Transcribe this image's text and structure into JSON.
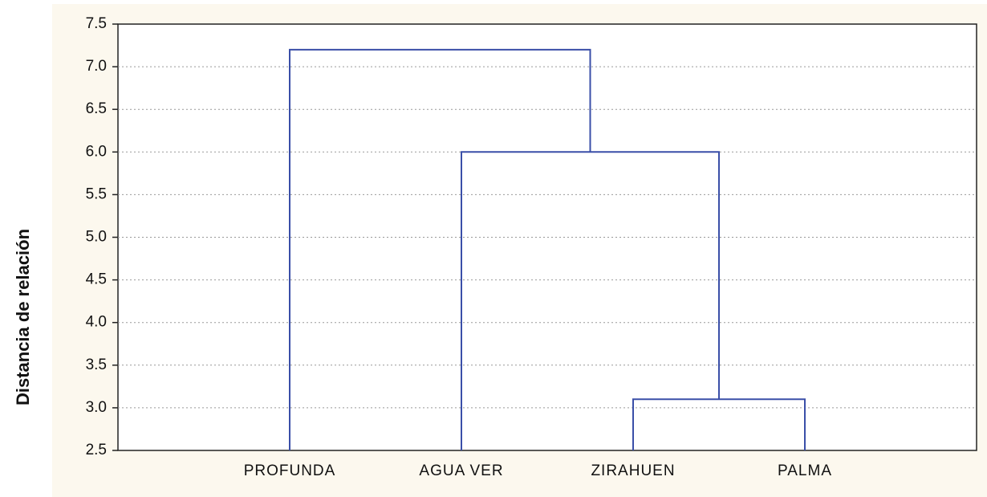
{
  "chart_data": {
    "type": "dendrogram",
    "y_label": "Distancia de relación",
    "categories": [
      "PROFUNDA",
      "AGUA VER",
      "ZIRAHUEN",
      "PALMA"
    ],
    "links": [
      [
        2,
        3,
        3.1
      ],
      [
        1,
        4,
        6.0
      ],
      [
        0,
        5,
        7.2
      ]
    ],
    "color": "#3a4fa8",
    "ylim": [
      2.5,
      7.5
    ],
    "yticks": [
      {
        "value": 2.5,
        "label": "2.5"
      },
      {
        "value": 3,
        "label": "3.0"
      },
      {
        "value": 3.5,
        "label": "3.5"
      },
      {
        "value": 4,
        "label": "4.0"
      },
      {
        "value": 4.5,
        "label": "4.5"
      },
      {
        "value": 5,
        "label": "5.0"
      },
      {
        "value": 5.5,
        "label": "5.5"
      },
      {
        "value": 6,
        "label": "6.0"
      },
      {
        "value": 6.5,
        "label": "6.5"
      },
      {
        "value": 7,
        "label": "7.0"
      },
      {
        "value": 7.5,
        "label": "7.5"
      }
    ],
    "grid": true
  }
}
